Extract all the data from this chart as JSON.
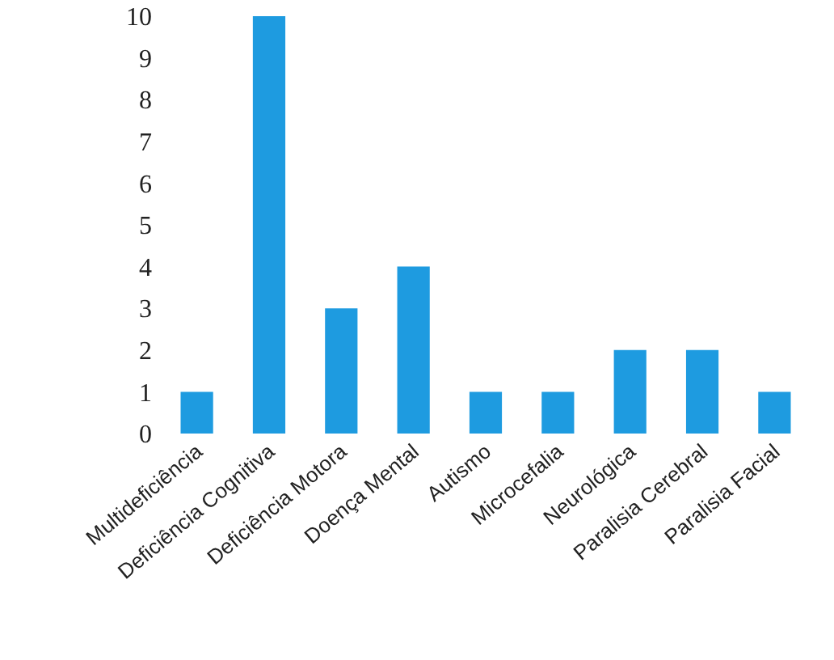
{
  "chart_data": {
    "type": "bar",
    "categories": [
      "Multideficiência",
      "Deficiência Cognitiva",
      "Deficiência Motora",
      "Doença Mental",
      "Autismo",
      "Microcefalia",
      "Neurológica",
      "Paralisia Cerebral",
      "Paralisia Facial"
    ],
    "values": [
      1,
      10,
      3,
      4,
      1,
      1,
      2,
      2,
      1
    ],
    "color": "#1e9be0",
    "ylim": [
      0,
      10
    ],
    "yticks": [
      0,
      1,
      2,
      3,
      4,
      5,
      6,
      7,
      8,
      9,
      10
    ],
    "grid": false,
    "legend": false
  }
}
